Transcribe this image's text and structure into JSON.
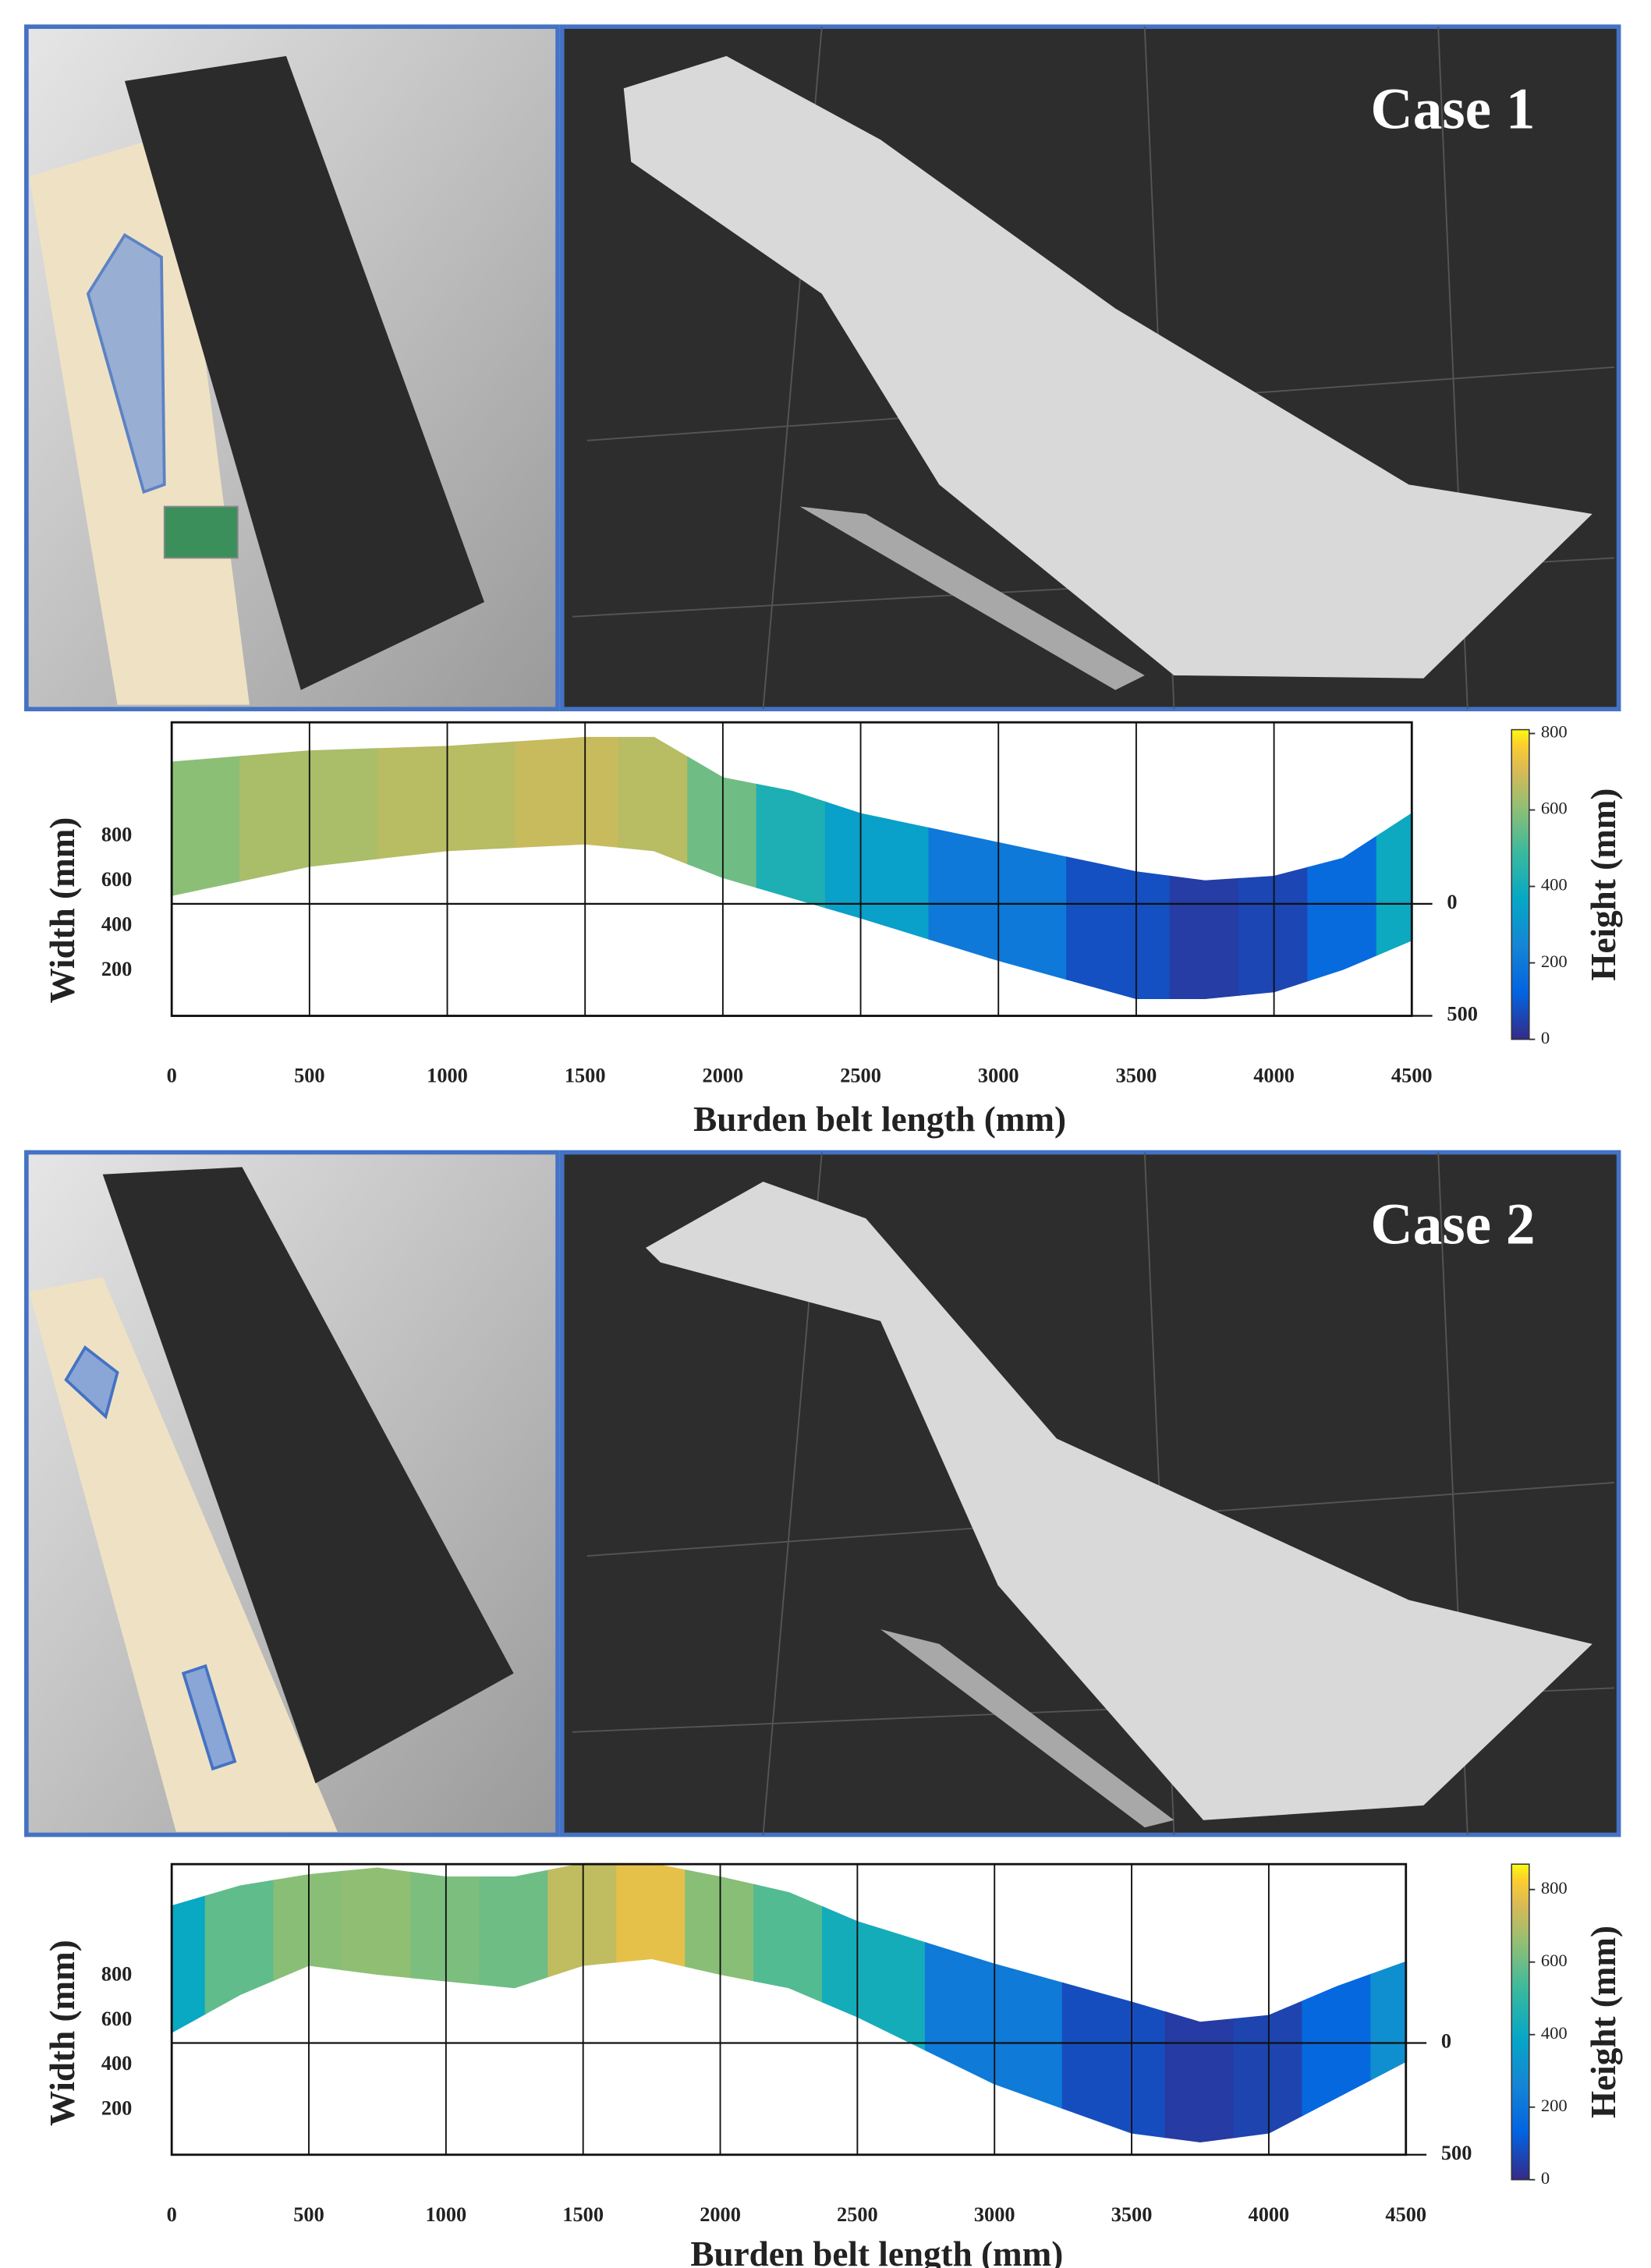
{
  "panels": [
    {
      "label": "Case 1"
    },
    {
      "label": "Case 2"
    }
  ],
  "chart_data": [
    {
      "type": "surface",
      "xlabel": "Burden belt length (mm)",
      "ylabel": "Width (mm)",
      "colorbar_label": "Height (mm)",
      "colormap": "parula",
      "grid": true,
      "x": [
        0,
        500,
        1000,
        1500,
        1750,
        2000,
        2250,
        2500,
        3000,
        3500,
        3750,
        4000,
        4250,
        4500
      ],
      "upper": [
        1130,
        1180,
        1200,
        1240,
        1240,
        1060,
        1000,
        900,
        770,
        640,
        600,
        620,
        700,
        900
      ],
      "lower": [
        540,
        670,
        740,
        770,
        740,
        620,
        530,
        440,
        250,
        80,
        80,
        110,
        210,
        340
      ],
      "height": [
        600,
        640,
        660,
        680,
        660,
        560,
        420,
        340,
        200,
        80,
        40,
        60,
        150,
        380
      ],
      "xlim": [
        0,
        4500
      ],
      "xticks": [
        0,
        500,
        1000,
        1500,
        2000,
        2500,
        3000,
        3500,
        4000,
        4500
      ],
      "ylim": [
        0,
        1310
      ],
      "yticks": [
        200,
        400,
        600,
        800
      ],
      "y2lim": [
        500,
        -810
      ],
      "y2ticks": [
        0,
        500
      ],
      "clim": [
        0,
        810
      ],
      "cticks": [
        0,
        200,
        400,
        600,
        800
      ]
    },
    {
      "type": "surface",
      "xlabel": "Burden belt length (mm)",
      "ylabel": "Width (mm)",
      "colorbar_label": "Height (mm)",
      "colormap": "parula",
      "grid": true,
      "x": [
        0,
        250,
        500,
        750,
        1000,
        1250,
        1500,
        1750,
        2000,
        2250,
        2500,
        3000,
        3500,
        3750,
        4000,
        4250,
        4500
      ],
      "upper": [
        1110,
        1200,
        1250,
        1280,
        1240,
        1240,
        1300,
        1300,
        1240,
        1170,
        1040,
        850,
        680,
        590,
        620,
        750,
        860
      ],
      "lower": [
        550,
        720,
        850,
        810,
        780,
        750,
        850,
        880,
        810,
        750,
        620,
        320,
        100,
        60,
        100,
        260,
        420
      ],
      "height": [
        400,
        580,
        640,
        650,
        620,
        600,
        720,
        780,
        640,
        560,
        430,
        220,
        80,
        40,
        60,
        150,
        300
      ],
      "xlim": [
        0,
        4500
      ],
      "xticks": [
        0,
        500,
        1000,
        1500,
        2000,
        2500,
        3000,
        3500,
        4000,
        4500
      ],
      "ylim": [
        0,
        1300
      ],
      "yticks": [
        200,
        400,
        600,
        800
      ],
      "y2lim": [
        500,
        -800
      ],
      "y2ticks": [
        0,
        500
      ],
      "clim": [
        0,
        870
      ],
      "cticks": [
        0,
        200,
        400,
        600,
        800
      ]
    }
  ]
}
